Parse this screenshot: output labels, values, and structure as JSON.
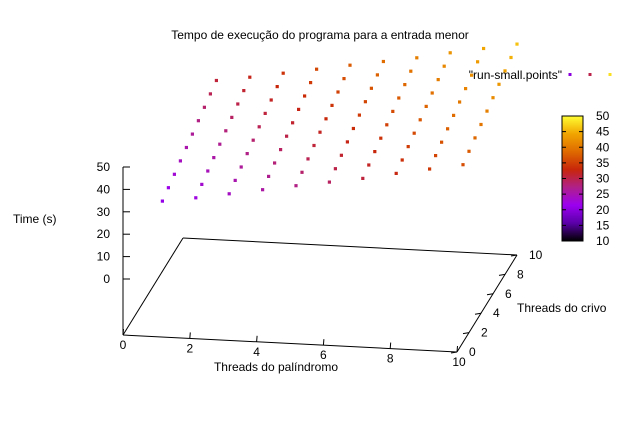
{
  "chart_data": {
    "type": "scatter",
    "title": "Tempo de execução do programa para a entrada menor",
    "xlabel": "Threads do palíndromo",
    "ylabel": "Threads do crivo",
    "zlabel": "Time (s)",
    "xlim": [
      0,
      10
    ],
    "ylim": [
      0,
      10
    ],
    "zlim": [
      0,
      50
    ],
    "x_ticks": [
      "0",
      "2",
      "4",
      "6",
      "8",
      "10"
    ],
    "y_ticks": [
      "0",
      "2",
      "4",
      "6",
      "8",
      "10"
    ],
    "z_ticks": [
      "0",
      "10",
      "20",
      "30",
      "40",
      "50"
    ],
    "legend": {
      "label": "\"run-small.points\"",
      "position": "top-right"
    },
    "colorbar": {
      "range": [
        10,
        50
      ],
      "ticks": [
        "10",
        "15",
        "20",
        "25",
        "30",
        "35",
        "40",
        "45",
        "50"
      ],
      "palette": [
        "#000000",
        "#5a00a8",
        "#9b00f0",
        "#b0208a",
        "#c8260a",
        "#df6a00",
        "#f1a500",
        "#ffff33"
      ]
    },
    "series": [
      {
        "x": 1,
        "y": [
          1,
          2,
          3,
          4,
          5,
          6,
          7,
          8,
          9,
          10
        ],
        "z": [
          20.8,
          21.9,
          23.0,
          24.1,
          25.2,
          26.3,
          27.4,
          28.5,
          29.6,
          30.7
        ]
      },
      {
        "x": 2,
        "y": [
          1,
          2,
          3,
          4,
          5,
          6,
          7,
          8,
          9,
          10
        ],
        "z": [
          22.3,
          23.4,
          24.5,
          25.6,
          26.7,
          27.8,
          28.9,
          30.0,
          31.1,
          32.2
        ]
      },
      {
        "x": 3,
        "y": [
          1,
          2,
          3,
          4,
          5,
          6,
          7,
          8,
          9,
          10
        ],
        "z": [
          24.0,
          25.1,
          26.2,
          27.3,
          28.4,
          29.5,
          30.6,
          31.7,
          32.8,
          33.9
        ]
      },
      {
        "x": 4,
        "y": [
          1,
          2,
          3,
          4,
          5,
          6,
          7,
          8,
          9,
          10
        ],
        "z": [
          25.7,
          26.8,
          27.9,
          29.0,
          30.1,
          31.2,
          32.3,
          33.4,
          34.5,
          35.6
        ]
      },
      {
        "x": 5,
        "y": [
          1,
          2,
          3,
          4,
          5,
          6,
          7,
          8,
          9,
          10
        ],
        "z": [
          27.4,
          28.5,
          29.6,
          30.7,
          31.8,
          32.9,
          34.0,
          35.1,
          36.2,
          37.3
        ]
      },
      {
        "x": 6,
        "y": [
          1,
          2,
          3,
          4,
          5,
          6,
          7,
          8,
          9,
          10
        ],
        "z": [
          29.0,
          30.1,
          31.2,
          32.3,
          33.4,
          34.5,
          35.6,
          36.7,
          37.8,
          38.9
        ]
      },
      {
        "x": 7,
        "y": [
          1,
          2,
          3,
          4,
          5,
          6,
          7,
          8,
          9,
          10
        ],
        "z": [
          30.6,
          31.7,
          32.8,
          33.9,
          35.0,
          36.1,
          37.2,
          38.3,
          39.4,
          40.5
        ]
      },
      {
        "x": 8,
        "y": [
          1,
          2,
          3,
          4,
          5,
          6,
          7,
          8,
          9,
          10
        ],
        "z": [
          32.6,
          33.7,
          34.8,
          35.9,
          37.0,
          38.1,
          39.2,
          40.3,
          41.4,
          42.5
        ]
      },
      {
        "x": 9,
        "y": [
          1,
          2,
          3,
          4,
          5,
          6,
          7,
          8,
          9,
          10
        ],
        "z": [
          34.4,
          35.5,
          36.6,
          37.7,
          38.8,
          39.9,
          41.0,
          42.1,
          43.2,
          44.3
        ]
      },
      {
        "x": 10,
        "y": [
          1,
          2,
          3,
          4,
          5,
          6,
          7,
          8,
          9,
          10
        ],
        "z": [
          36.2,
          37.3,
          38.4,
          39.5,
          40.6,
          41.7,
          42.8,
          43.9,
          45.0,
          46.1
        ]
      }
    ]
  }
}
